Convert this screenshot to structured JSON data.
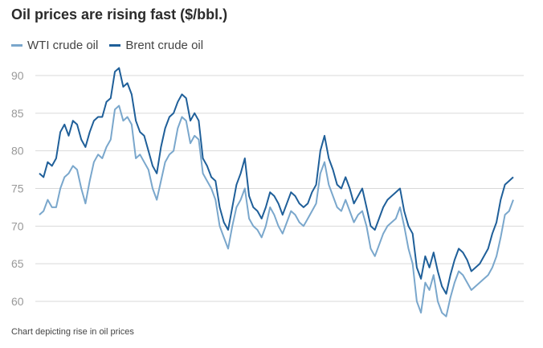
{
  "header": {
    "title": "Oil prices are rising fast ($/bbl.)"
  },
  "footer": {
    "caption": "Chart depicting rise in oil prices"
  },
  "chart_data": {
    "type": "line",
    "title": "Oil prices are rising fast ($/bbl.)",
    "xlabel": "",
    "ylabel": "",
    "ylim": [
      58,
      92
    ],
    "yticks": [
      60,
      65,
      70,
      75,
      80,
      85,
      90
    ],
    "grid": "horizontal",
    "legend": "top-left",
    "x_points": 120,
    "series": [
      {
        "name": "WTI crude oil",
        "color": "#7aa7cc",
        "values": [
          71.5,
          72.0,
          73.5,
          72.5,
          72.5,
          75.0,
          76.5,
          77.0,
          78.0,
          77.5,
          75.0,
          73.0,
          76.0,
          78.5,
          79.5,
          79.0,
          80.5,
          81.5,
          85.5,
          86.0,
          84.0,
          84.5,
          83.5,
          79.0,
          79.5,
          78.5,
          77.5,
          75.0,
          73.5,
          76.0,
          78.5,
          79.5,
          80.0,
          83.0,
          84.5,
          84.0,
          81.0,
          82.0,
          81.5,
          77.0,
          76.0,
          75.0,
          73.5,
          70.0,
          68.5,
          67.0,
          70.0,
          72.5,
          73.5,
          75.0,
          71.0,
          70.0,
          69.5,
          68.5,
          70.0,
          72.5,
          71.5,
          70.0,
          69.0,
          70.5,
          72.0,
          71.5,
          70.5,
          70.0,
          71.0,
          72.0,
          73.0,
          77.0,
          78.5,
          75.5,
          74.0,
          72.5,
          72.0,
          73.5,
          72.0,
          70.5,
          71.5,
          72.0,
          70.0,
          67.0,
          66.0,
          67.5,
          69.0,
          70.0,
          70.5,
          71.0,
          72.5,
          70.0,
          67.0,
          65.0,
          60.0,
          58.5,
          62.5,
          61.5,
          63.5,
          60.0,
          58.5,
          58.0,
          60.5,
          62.5,
          64.0,
          63.5,
          62.5,
          61.5,
          62.0,
          62.5,
          63.0,
          63.5,
          64.5,
          66.0,
          68.5,
          71.5,
          72.0,
          73.5
        ],
        "y": [
          71.5,
          72.0,
          73.5,
          72.5,
          72.5,
          75.0,
          76.5,
          77.0,
          78.0,
          77.5,
          75.0,
          73.0,
          76.0,
          78.5,
          79.5,
          79.0,
          80.5,
          81.5,
          85.5,
          86.0,
          84.0,
          84.5,
          83.5,
          79.0,
          79.5,
          78.5,
          77.5,
          75.0,
          73.5,
          76.0,
          78.5,
          79.5,
          80.0,
          83.0,
          84.5,
          84.0,
          81.0,
          82.0,
          81.5,
          77.0,
          76.0,
          75.0,
          73.5,
          70.0,
          68.5,
          67.0,
          70.0,
          72.5,
          73.5,
          75.0,
          71.0,
          70.0,
          69.5,
          68.5,
          70.0,
          72.5,
          71.5,
          70.0,
          69.0,
          70.5,
          72.0,
          71.5,
          70.5,
          70.0,
          71.0,
          72.0,
          73.0,
          77.0,
          78.5,
          75.5,
          74.0,
          72.5,
          72.0,
          73.5,
          72.0,
          70.5,
          71.5,
          72.0,
          70.0,
          67.0,
          66.0,
          67.5,
          69.0,
          70.0,
          70.5,
          71.0,
          72.5,
          70.0,
          67.0,
          65.0,
          60.0,
          58.5,
          62.5,
          61.5,
          63.5,
          60.0,
          58.5,
          58.0,
          60.5,
          62.5,
          64.0,
          63.5,
          62.5,
          61.5,
          62.0,
          62.5,
          63.0,
          63.5,
          64.5,
          66.0,
          68.5,
          71.5,
          72.0,
          73.5
        ]
      },
      {
        "name": "Brent crude oil",
        "color": "#1f5f99",
        "values": [
          77.0,
          76.5,
          78.5,
          78.0,
          79.0,
          82.5,
          83.5,
          82.0,
          84.0,
          83.5,
          81.5,
          80.5,
          82.5,
          84.0,
          84.5,
          84.5,
          86.5,
          87.0,
          90.5,
          91.0,
          88.5,
          89.0,
          87.5,
          84.0,
          82.5,
          82.0,
          80.0,
          78.0,
          77.0,
          80.5,
          83.0,
          84.5,
          85.0,
          86.5,
          87.5,
          87.0,
          84.0,
          85.0,
          84.0,
          79.0,
          78.0,
          76.5,
          76.0,
          72.5,
          70.5,
          69.5,
          72.5,
          75.5,
          77.0,
          79.0,
          74.0,
          72.5,
          72.0,
          71.0,
          72.5,
          74.5,
          74.0,
          73.0,
          71.5,
          73.0,
          74.5,
          74.0,
          73.0,
          72.5,
          73.0,
          74.5,
          75.5,
          80.0,
          82.0,
          79.0,
          77.5,
          75.5,
          75.0,
          76.5,
          75.0,
          73.0,
          74.0,
          75.0,
          72.5,
          70.0,
          69.5,
          71.0,
          72.5,
          73.5,
          74.0,
          74.5,
          75.0,
          72.0,
          70.0,
          69.0,
          64.5,
          63.0,
          66.0,
          64.5,
          66.5,
          64.0,
          62.0,
          61.0,
          63.5,
          65.5,
          67.0,
          66.5,
          65.5,
          64.0,
          64.5,
          65.0,
          66.0,
          67.0,
          69.0,
          70.5,
          73.5,
          75.5,
          76.0,
          76.5
        ],
        "y": [
          77.0,
          76.5,
          78.5,
          78.0,
          79.0,
          82.5,
          83.5,
          82.0,
          84.0,
          83.5,
          81.5,
          80.5,
          82.5,
          84.0,
          84.5,
          84.5,
          86.5,
          87.0,
          90.5,
          91.0,
          88.5,
          89.0,
          87.5,
          84.0,
          82.5,
          82.0,
          80.0,
          78.0,
          77.0,
          80.5,
          83.0,
          84.5,
          85.0,
          86.5,
          87.5,
          87.0,
          84.0,
          85.0,
          84.0,
          79.0,
          78.0,
          76.5,
          76.0,
          72.5,
          70.5,
          69.5,
          72.5,
          75.5,
          77.0,
          79.0,
          74.0,
          72.5,
          72.0,
          71.0,
          72.5,
          74.5,
          74.0,
          73.0,
          71.5,
          73.0,
          74.5,
          74.0,
          73.0,
          72.5,
          73.0,
          74.5,
          75.5,
          80.0,
          82.0,
          79.0,
          77.5,
          75.5,
          75.0,
          76.5,
          75.0,
          73.0,
          74.0,
          75.0,
          72.5,
          70.0,
          69.5,
          71.0,
          72.5,
          73.5,
          74.0,
          74.5,
          75.0,
          72.0,
          70.0,
          69.0,
          64.5,
          63.0,
          66.0,
          64.5,
          66.5,
          64.0,
          62.0,
          61.0,
          63.5,
          65.5,
          67.0,
          66.5,
          65.5,
          64.0,
          64.5,
          65.0,
          66.0,
          67.0,
          69.0,
          70.5,
          73.5,
          75.5,
          76.0,
          76.5
        ]
      }
    ]
  }
}
